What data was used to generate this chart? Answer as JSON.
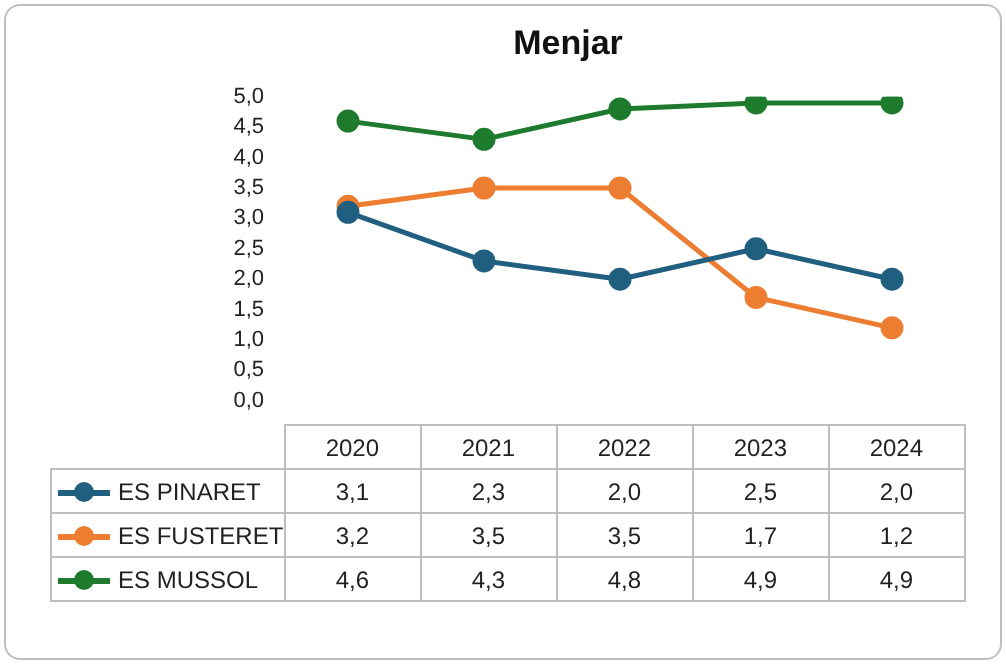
{
  "chart_data": {
    "type": "line",
    "title": "Menjar",
    "categories": [
      "2020",
      "2021",
      "2022",
      "2023",
      "2024"
    ],
    "series": [
      {
        "name": "ES PINARET",
        "color": "#215f80",
        "values": [
          3.1,
          2.3,
          2.0,
          2.5,
          2.0
        ],
        "value_labels": [
          "3,1",
          "2,3",
          "2,0",
          "2,5",
          "2,0"
        ]
      },
      {
        "name": "ES FUSTERET",
        "color": "#ed7d31",
        "values": [
          3.2,
          3.5,
          3.5,
          1.7,
          1.2
        ],
        "value_labels": [
          "3,2",
          "3,5",
          "3,5",
          "1,7",
          "1,2"
        ]
      },
      {
        "name": "ES MUSSOL",
        "color": "#1e7b2e",
        "values": [
          4.6,
          4.3,
          4.8,
          4.9,
          4.9
        ],
        "value_labels": [
          "4,6",
          "4,3",
          "4,8",
          "4,9",
          "4,9"
        ]
      }
    ],
    "ylim": [
      0,
      5
    ],
    "yticks": [
      {
        "value": 0,
        "label": "0,0"
      },
      {
        "value": 0.5,
        "label": "0,5"
      },
      {
        "value": 1,
        "label": "1,0"
      },
      {
        "value": 1.5,
        "label": "1,5"
      },
      {
        "value": 2,
        "label": "2,0"
      },
      {
        "value": 2.5,
        "label": "2,5"
      },
      {
        "value": 3,
        "label": "3,0"
      },
      {
        "value": 3.5,
        "label": "3,5"
      },
      {
        "value": 4,
        "label": "4,0"
      },
      {
        "value": 4.5,
        "label": "4,5"
      },
      {
        "value": 5,
        "label": "5,0"
      }
    ],
    "grid": false,
    "legend": "bottom",
    "marker": "circle",
    "line_style": "solid"
  }
}
